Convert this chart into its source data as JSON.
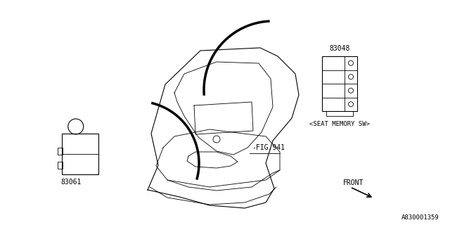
{
  "bg_color": "#ffffff",
  "line_color": "#000000",
  "label_83048": "83048",
  "label_83061": "83061",
  "label_seat_memory": "<SEAT MEMORY SW>",
  "label_fig941": "-FIG.941",
  "label_front": "FRONT",
  "label_part_number": "A830001359",
  "font_size_labels": 7,
  "font_size_part": 6.5
}
